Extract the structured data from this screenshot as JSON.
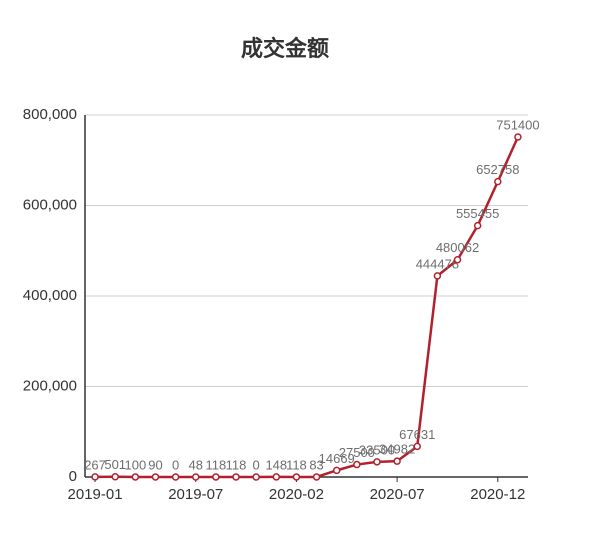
{
  "chart_data": {
    "type": "line",
    "title": "成交金额",
    "categories": [
      "2019-01",
      null,
      null,
      null,
      null,
      "2019-07",
      null,
      null,
      null,
      null,
      "2020-02",
      null,
      null,
      null,
      null,
      "2020-07",
      null,
      null,
      null,
      null,
      "2020-12",
      null
    ],
    "series": [
      {
        "color": "#b3202c",
        "values": [
          267,
          501,
          100,
          90,
          0,
          48,
          118,
          118,
          0,
          148,
          118,
          83,
          14669,
          27500,
          33500,
          34982,
          67631,
          444478,
          480062,
          555455,
          652758,
          751400
        ]
      }
    ],
    "ylim": [
      0,
      800000
    ],
    "yticks": [
      0,
      {
        "value": 200000,
        "label": "200,000"
      },
      {
        "value": 400000,
        "label": "400,000"
      },
      {
        "value": 600000,
        "label": "600,000"
      },
      {
        "value": 800000,
        "label": "800,000"
      }
    ],
    "grid": true
  }
}
